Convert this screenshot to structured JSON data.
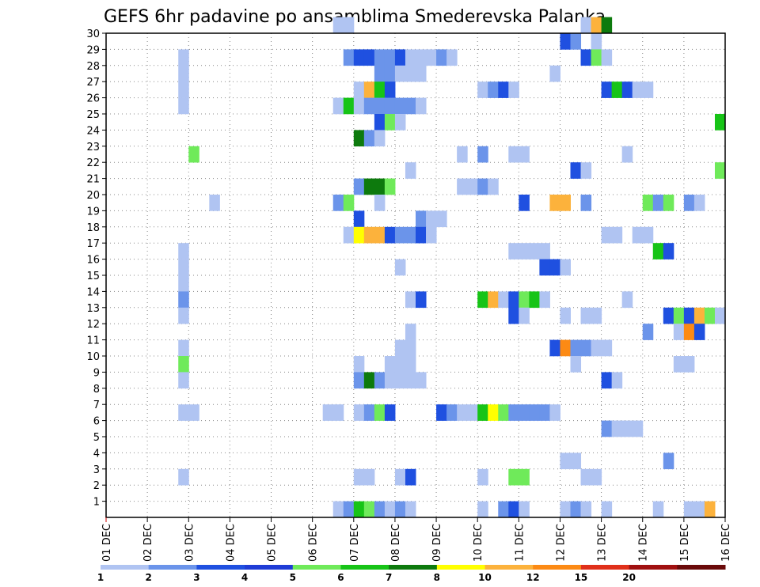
{
  "chart_data": {
    "type": "heatmap",
    "title": "GEFS 6hr padavine po ansamblima Smederevska Palanka",
    "xlabel": "",
    "ylabel": "",
    "x_tick_labels": [
      "01 DEC",
      "02 DEC",
      "03 DEC",
      "04 DEC",
      "05 DEC",
      "06 DEC",
      "07 DEC",
      "08 DEC",
      "09 DEC",
      "10 DEC",
      "11 DEC",
      "12 DEC",
      "13 DEC",
      "14 DEC",
      "15 DEC",
      "16 DEC"
    ],
    "y_tick_labels": [
      "1",
      "2",
      "3",
      "4",
      "5",
      "6",
      "7",
      "8",
      "9",
      "10",
      "11",
      "12",
      "13",
      "14",
      "15",
      "16",
      "17",
      "18",
      "19",
      "20",
      "21",
      "22",
      "23",
      "24",
      "25",
      "26",
      "27",
      "28",
      "29",
      "30"
    ],
    "xlim": [
      "01 DEC",
      "16 DEC"
    ],
    "ylim": [
      0,
      30
    ],
    "grid": true,
    "colorbar": {
      "labels": [
        "1",
        "2",
        "3",
        "4",
        "5",
        "6",
        "7",
        "8",
        "10",
        "12",
        "15",
        "20"
      ],
      "colors": [
        "#b0c4f2",
        "#6b94ea",
        "#1f50e0",
        "#1f3cd6",
        "#6fea5a",
        "#17c417",
        "#0d7a0d",
        "#ffff00",
        "#fcb23c",
        "#fc8a14",
        "#e0301a",
        "#a01010",
        "#6a0a0a"
      ]
    },
    "cell_width_days": 0.25,
    "cells": [
      {
        "t": 0.0,
        "m": 0,
        "c": 0
      }
    ],
    "notes_cells_format": "t = start of 6hr step in days after 01 DEC 00z, m = ensemble member (0 = bottom row), c = color class index"
  },
  "cell_list": [
    [
      5.5,
      30,
      0
    ],
    [
      5.75,
      30,
      0
    ],
    [
      11.5,
      30,
      0
    ],
    [
      11.75,
      30,
      8
    ],
    [
      12.0,
      30,
      6
    ],
    [
      11.0,
      29,
      2
    ],
    [
      11.25,
      29,
      1
    ],
    [
      11.75,
      29,
      0
    ],
    [
      1.75,
      28,
      0
    ],
    [
      5.75,
      28,
      1
    ],
    [
      6.0,
      28,
      2
    ],
    [
      6.25,
      28,
      2
    ],
    [
      6.5,
      28,
      1
    ],
    [
      6.75,
      28,
      1
    ],
    [
      7.0,
      28,
      2
    ],
    [
      7.25,
      28,
      0
    ],
    [
      7.5,
      28,
      0
    ],
    [
      7.75,
      28,
      0
    ],
    [
      8.0,
      28,
      1
    ],
    [
      8.25,
      28,
      0
    ],
    [
      11.5,
      28,
      2
    ],
    [
      11.75,
      28,
      4
    ],
    [
      12.0,
      28,
      0
    ],
    [
      1.75,
      27,
      0
    ],
    [
      6.5,
      27,
      1
    ],
    [
      6.75,
      27,
      1
    ],
    [
      7.0,
      27,
      0
    ],
    [
      7.25,
      27,
      0
    ],
    [
      7.5,
      27,
      0
    ],
    [
      10.75,
      27,
      0
    ],
    [
      1.75,
      26,
      0
    ],
    [
      6.0,
      26,
      0
    ],
    [
      6.25,
      26,
      8
    ],
    [
      6.5,
      26,
      5
    ],
    [
      6.75,
      26,
      2
    ],
    [
      9.0,
      26,
      0
    ],
    [
      9.25,
      26,
      1
    ],
    [
      9.5,
      26,
      2
    ],
    [
      9.75,
      26,
      0
    ],
    [
      12.0,
      26,
      2
    ],
    [
      12.25,
      26,
      5
    ],
    [
      12.5,
      26,
      2
    ],
    [
      12.75,
      26,
      0
    ],
    [
      13.0,
      26,
      0
    ],
    [
      1.75,
      25,
      0
    ],
    [
      5.5,
      25,
      0
    ],
    [
      5.75,
      25,
      5
    ],
    [
      6.0,
      25,
      0
    ],
    [
      6.25,
      25,
      1
    ],
    [
      6.5,
      25,
      1
    ],
    [
      6.75,
      25,
      1
    ],
    [
      7.0,
      25,
      1
    ],
    [
      7.25,
      25,
      1
    ],
    [
      7.5,
      25,
      0
    ],
    [
      6.5,
      24,
      2
    ],
    [
      6.75,
      24,
      4
    ],
    [
      7.0,
      24,
      0
    ],
    [
      14.75,
      24,
      5
    ],
    [
      6.0,
      23,
      6
    ],
    [
      6.25,
      23,
      1
    ],
    [
      6.5,
      23,
      0
    ],
    [
      2.0,
      22,
      4
    ],
    [
      8.5,
      22,
      0
    ],
    [
      9.0,
      22,
      1
    ],
    [
      9.75,
      22,
      0
    ],
    [
      10.0,
      22,
      0
    ],
    [
      12.5,
      22,
      0
    ],
    [
      7.25,
      21,
      0
    ],
    [
      11.25,
      21,
      2
    ],
    [
      11.5,
      21,
      0
    ],
    [
      14.75,
      21,
      4
    ],
    [
      6.0,
      20,
      1
    ],
    [
      6.25,
      20,
      6
    ],
    [
      6.5,
      20,
      6
    ],
    [
      6.75,
      20,
      4
    ],
    [
      8.5,
      20,
      0
    ],
    [
      8.75,
      20,
      0
    ],
    [
      9.0,
      20,
      1
    ],
    [
      9.25,
      20,
      0
    ],
    [
      2.5,
      19,
      0
    ],
    [
      5.5,
      19,
      1
    ],
    [
      5.75,
      19,
      4
    ],
    [
      6.5,
      19,
      0
    ],
    [
      10.0,
      19,
      2
    ],
    [
      10.75,
      19,
      8
    ],
    [
      11.0,
      19,
      8
    ],
    [
      11.5,
      19,
      1
    ],
    [
      13.0,
      19,
      4
    ],
    [
      13.25,
      19,
      1
    ],
    [
      13.5,
      19,
      4
    ],
    [
      14.0,
      19,
      1
    ],
    [
      14.25,
      19,
      0
    ],
    [
      6.0,
      18,
      2
    ],
    [
      7.5,
      18,
      1
    ],
    [
      7.75,
      18,
      0
    ],
    [
      8.0,
      18,
      0
    ],
    [
      5.75,
      17,
      0
    ],
    [
      6.0,
      17,
      7
    ],
    [
      6.25,
      17,
      8
    ],
    [
      6.5,
      17,
      8
    ],
    [
      6.75,
      17,
      2
    ],
    [
      7.0,
      17,
      1
    ],
    [
      7.25,
      17,
      1
    ],
    [
      7.5,
      17,
      2
    ],
    [
      7.75,
      17,
      0
    ],
    [
      12.0,
      17,
      0
    ],
    [
      12.25,
      17,
      0
    ],
    [
      12.75,
      17,
      0
    ],
    [
      13.0,
      17,
      0
    ],
    [
      1.75,
      16,
      0
    ],
    [
      9.75,
      16,
      0
    ],
    [
      10.0,
      16,
      0
    ],
    [
      10.25,
      16,
      0
    ],
    [
      10.5,
      16,
      0
    ],
    [
      13.25,
      16,
      5
    ],
    [
      13.5,
      16,
      2
    ],
    [
      1.75,
      15,
      0
    ],
    [
      7.0,
      15,
      0
    ],
    [
      10.5,
      15,
      2
    ],
    [
      10.75,
      15,
      2
    ],
    [
      11.0,
      15,
      0
    ],
    [
      1.75,
      14,
      0
    ],
    [
      1.75,
      13,
      1
    ],
    [
      7.25,
      13,
      0
    ],
    [
      7.5,
      13,
      2
    ],
    [
      9.0,
      13,
      5
    ],
    [
      9.25,
      13,
      8
    ],
    [
      9.5,
      13,
      0
    ],
    [
      9.75,
      13,
      2
    ],
    [
      10.0,
      13,
      4
    ],
    [
      10.25,
      13,
      5
    ],
    [
      10.5,
      13,
      0
    ],
    [
      12.5,
      13,
      0
    ],
    [
      1.75,
      12,
      0
    ],
    [
      9.75,
      12,
      2
    ],
    [
      10.0,
      12,
      0
    ],
    [
      11.0,
      12,
      0
    ],
    [
      11.5,
      12,
      0
    ],
    [
      11.75,
      12,
      0
    ],
    [
      13.5,
      12,
      2
    ],
    [
      13.75,
      12,
      4
    ],
    [
      14.0,
      12,
      2
    ],
    [
      14.25,
      12,
      8
    ],
    [
      14.5,
      12,
      4
    ],
    [
      14.75,
      12,
      0
    ],
    [
      7.25,
      11,
      0
    ],
    [
      13.0,
      11,
      1
    ],
    [
      13.75,
      11,
      0
    ],
    [
      14.0,
      11,
      9
    ],
    [
      14.25,
      11,
      2
    ],
    [
      1.75,
      10,
      0
    ],
    [
      7.0,
      10,
      0
    ],
    [
      7.25,
      10,
      0
    ],
    [
      10.75,
      10,
      2
    ],
    [
      11.0,
      10,
      9
    ],
    [
      11.25,
      10,
      1
    ],
    [
      11.5,
      10,
      1
    ],
    [
      11.75,
      10,
      0
    ],
    [
      12.0,
      10,
      0
    ],
    [
      1.75,
      9,
      4
    ],
    [
      6.0,
      9,
      0
    ],
    [
      6.75,
      9,
      0
    ],
    [
      7.0,
      9,
      0
    ],
    [
      7.25,
      9,
      0
    ],
    [
      11.25,
      9,
      0
    ],
    [
      13.75,
      9,
      0
    ],
    [
      14.0,
      9,
      0
    ],
    [
      1.75,
      8,
      0
    ],
    [
      6.0,
      8,
      1
    ],
    [
      6.25,
      8,
      6
    ],
    [
      6.5,
      8,
      1
    ],
    [
      6.75,
      8,
      0
    ],
    [
      7.0,
      8,
      0
    ],
    [
      7.25,
      8,
      0
    ],
    [
      7.5,
      8,
      0
    ],
    [
      12.0,
      8,
      2
    ],
    [
      12.25,
      8,
      0
    ],
    [
      1.75,
      6,
      0
    ],
    [
      2.0,
      6,
      0
    ],
    [
      5.25,
      6,
      0
    ],
    [
      5.5,
      6,
      0
    ],
    [
      6.0,
      6,
      0
    ],
    [
      6.25,
      6,
      1
    ],
    [
      6.5,
      6,
      4
    ],
    [
      6.75,
      6,
      2
    ],
    [
      8.0,
      6,
      2
    ],
    [
      8.25,
      6,
      1
    ],
    [
      8.5,
      6,
      0
    ],
    [
      8.75,
      6,
      0
    ],
    [
      9.0,
      6,
      5
    ],
    [
      9.25,
      6,
      7
    ],
    [
      9.5,
      6,
      4
    ],
    [
      9.75,
      6,
      1
    ],
    [
      10.0,
      6,
      1
    ],
    [
      10.25,
      6,
      1
    ],
    [
      10.5,
      6,
      1
    ],
    [
      10.75,
      6,
      0
    ],
    [
      12.0,
      5,
      1
    ],
    [
      12.25,
      5,
      0
    ],
    [
      12.5,
      5,
      0
    ],
    [
      12.75,
      5,
      0
    ],
    [
      11.0,
      3,
      0
    ],
    [
      11.25,
      3,
      0
    ],
    [
      13.5,
      3,
      1
    ],
    [
      1.75,
      2,
      0
    ],
    [
      6.0,
      2,
      0
    ],
    [
      6.25,
      2,
      0
    ],
    [
      7.0,
      2,
      0
    ],
    [
      7.25,
      2,
      2
    ],
    [
      9.0,
      2,
      0
    ],
    [
      9.75,
      2,
      4
    ],
    [
      10.0,
      2,
      4
    ],
    [
      11.5,
      2,
      0
    ],
    [
      11.75,
      2,
      0
    ],
    [
      5.5,
      0,
      0
    ],
    [
      5.75,
      0,
      1
    ],
    [
      6.0,
      0,
      5
    ],
    [
      6.25,
      0,
      4
    ],
    [
      6.5,
      0,
      1
    ],
    [
      6.75,
      0,
      0
    ],
    [
      7.0,
      0,
      1
    ],
    [
      7.25,
      0,
      0
    ],
    [
      9.0,
      0,
      0
    ],
    [
      9.5,
      0,
      1
    ],
    [
      9.75,
      0,
      2
    ],
    [
      10.0,
      0,
      0
    ],
    [
      11.0,
      0,
      0
    ],
    [
      11.25,
      0,
      1
    ],
    [
      11.5,
      0,
      0
    ],
    [
      12.0,
      0,
      0
    ],
    [
      13.25,
      0,
      0
    ],
    [
      14.0,
      0,
      0
    ],
    [
      14.25,
      0,
      0
    ],
    [
      14.5,
      0,
      8
    ]
  ]
}
